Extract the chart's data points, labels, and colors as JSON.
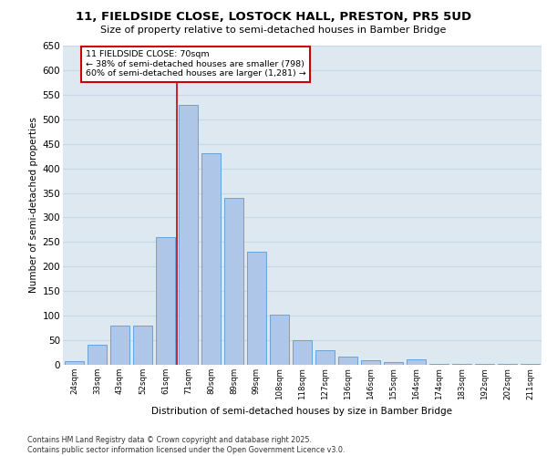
{
  "title1": "11, FIELDSIDE CLOSE, LOSTOCK HALL, PRESTON, PR5 5UD",
  "title2": "Size of property relative to semi-detached houses in Bamber Bridge",
  "xlabel": "Distribution of semi-detached houses by size in Bamber Bridge",
  "ylabel": "Number of semi-detached properties",
  "footnote1": "Contains HM Land Registry data © Crown copyright and database right 2025.",
  "footnote2": "Contains public sector information licensed under the Open Government Licence v3.0.",
  "categories": [
    "24sqm",
    "33sqm",
    "43sqm",
    "52sqm",
    "61sqm",
    "71sqm",
    "80sqm",
    "89sqm",
    "99sqm",
    "108sqm",
    "118sqm",
    "127sqm",
    "136sqm",
    "146sqm",
    "155sqm",
    "164sqm",
    "174sqm",
    "183sqm",
    "192sqm",
    "202sqm",
    "211sqm"
  ],
  "values": [
    8,
    40,
    80,
    80,
    260,
    530,
    430,
    340,
    230,
    103,
    50,
    29,
    16,
    10,
    6,
    11,
    2,
    2,
    1,
    1,
    1
  ],
  "bar_color": "#aec6e8",
  "bar_edge_color": "#5b9bd5",
  "grid_color": "#c8d8e8",
  "background_color": "#dde8f0",
  "fig_background": "#ffffff",
  "property_line_x": 5,
  "property_size": "70sqm",
  "property_label": "11 FIELDSIDE CLOSE: 70sqm",
  "pct_smaller": "38%",
  "pct_smaller_n": "798",
  "pct_larger": "60%",
  "pct_larger_n": "1,281",
  "annotation_box_color": "#cc0000",
  "ylim": [
    0,
    650
  ],
  "yticks": [
    0,
    50,
    100,
    150,
    200,
    250,
    300,
    350,
    400,
    450,
    500,
    550,
    600,
    650
  ]
}
